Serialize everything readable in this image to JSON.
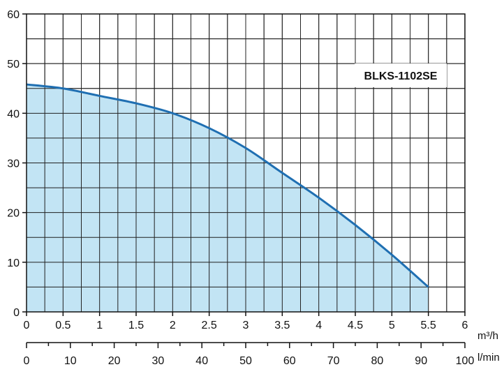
{
  "chart_data": {
    "type": "area",
    "title": "",
    "series": [
      {
        "name": "BLKS-1102SE",
        "x": [
          0,
          0.5,
          1.0,
          1.5,
          2.0,
          2.5,
          3.0,
          3.5,
          4.0,
          4.5,
          5.0,
          5.5
        ],
        "y": [
          45.8,
          45,
          43.5,
          42,
          40,
          37,
          33,
          28,
          23,
          17.5,
          11.5,
          5
        ]
      }
    ],
    "x_axis": {
      "unit": "m³/h",
      "lim": [
        0,
        6
      ],
      "ticks": [
        "0",
        "0.5",
        "1",
        "1.5",
        "2",
        "2.5",
        "3",
        "3.5",
        "4",
        "4.5",
        "5",
        "5.5",
        "6"
      ]
    },
    "secondary_x_axis": {
      "unit": "l/min",
      "lim": [
        0,
        100
      ],
      "ticks": [
        "0",
        "10",
        "20",
        "30",
        "40",
        "50",
        "60",
        "70",
        "80",
        "90",
        "100"
      ]
    },
    "y_axis": {
      "lim": [
        0,
        60
      ],
      "ticks": [
        "0",
        "10",
        "20",
        "30",
        "40",
        "50",
        "60"
      ]
    },
    "grid": true,
    "legend_placement": "top-right",
    "colors": {
      "line": "#1f6fb2",
      "fill": "#bfe3f3",
      "grid": "#222222"
    }
  }
}
